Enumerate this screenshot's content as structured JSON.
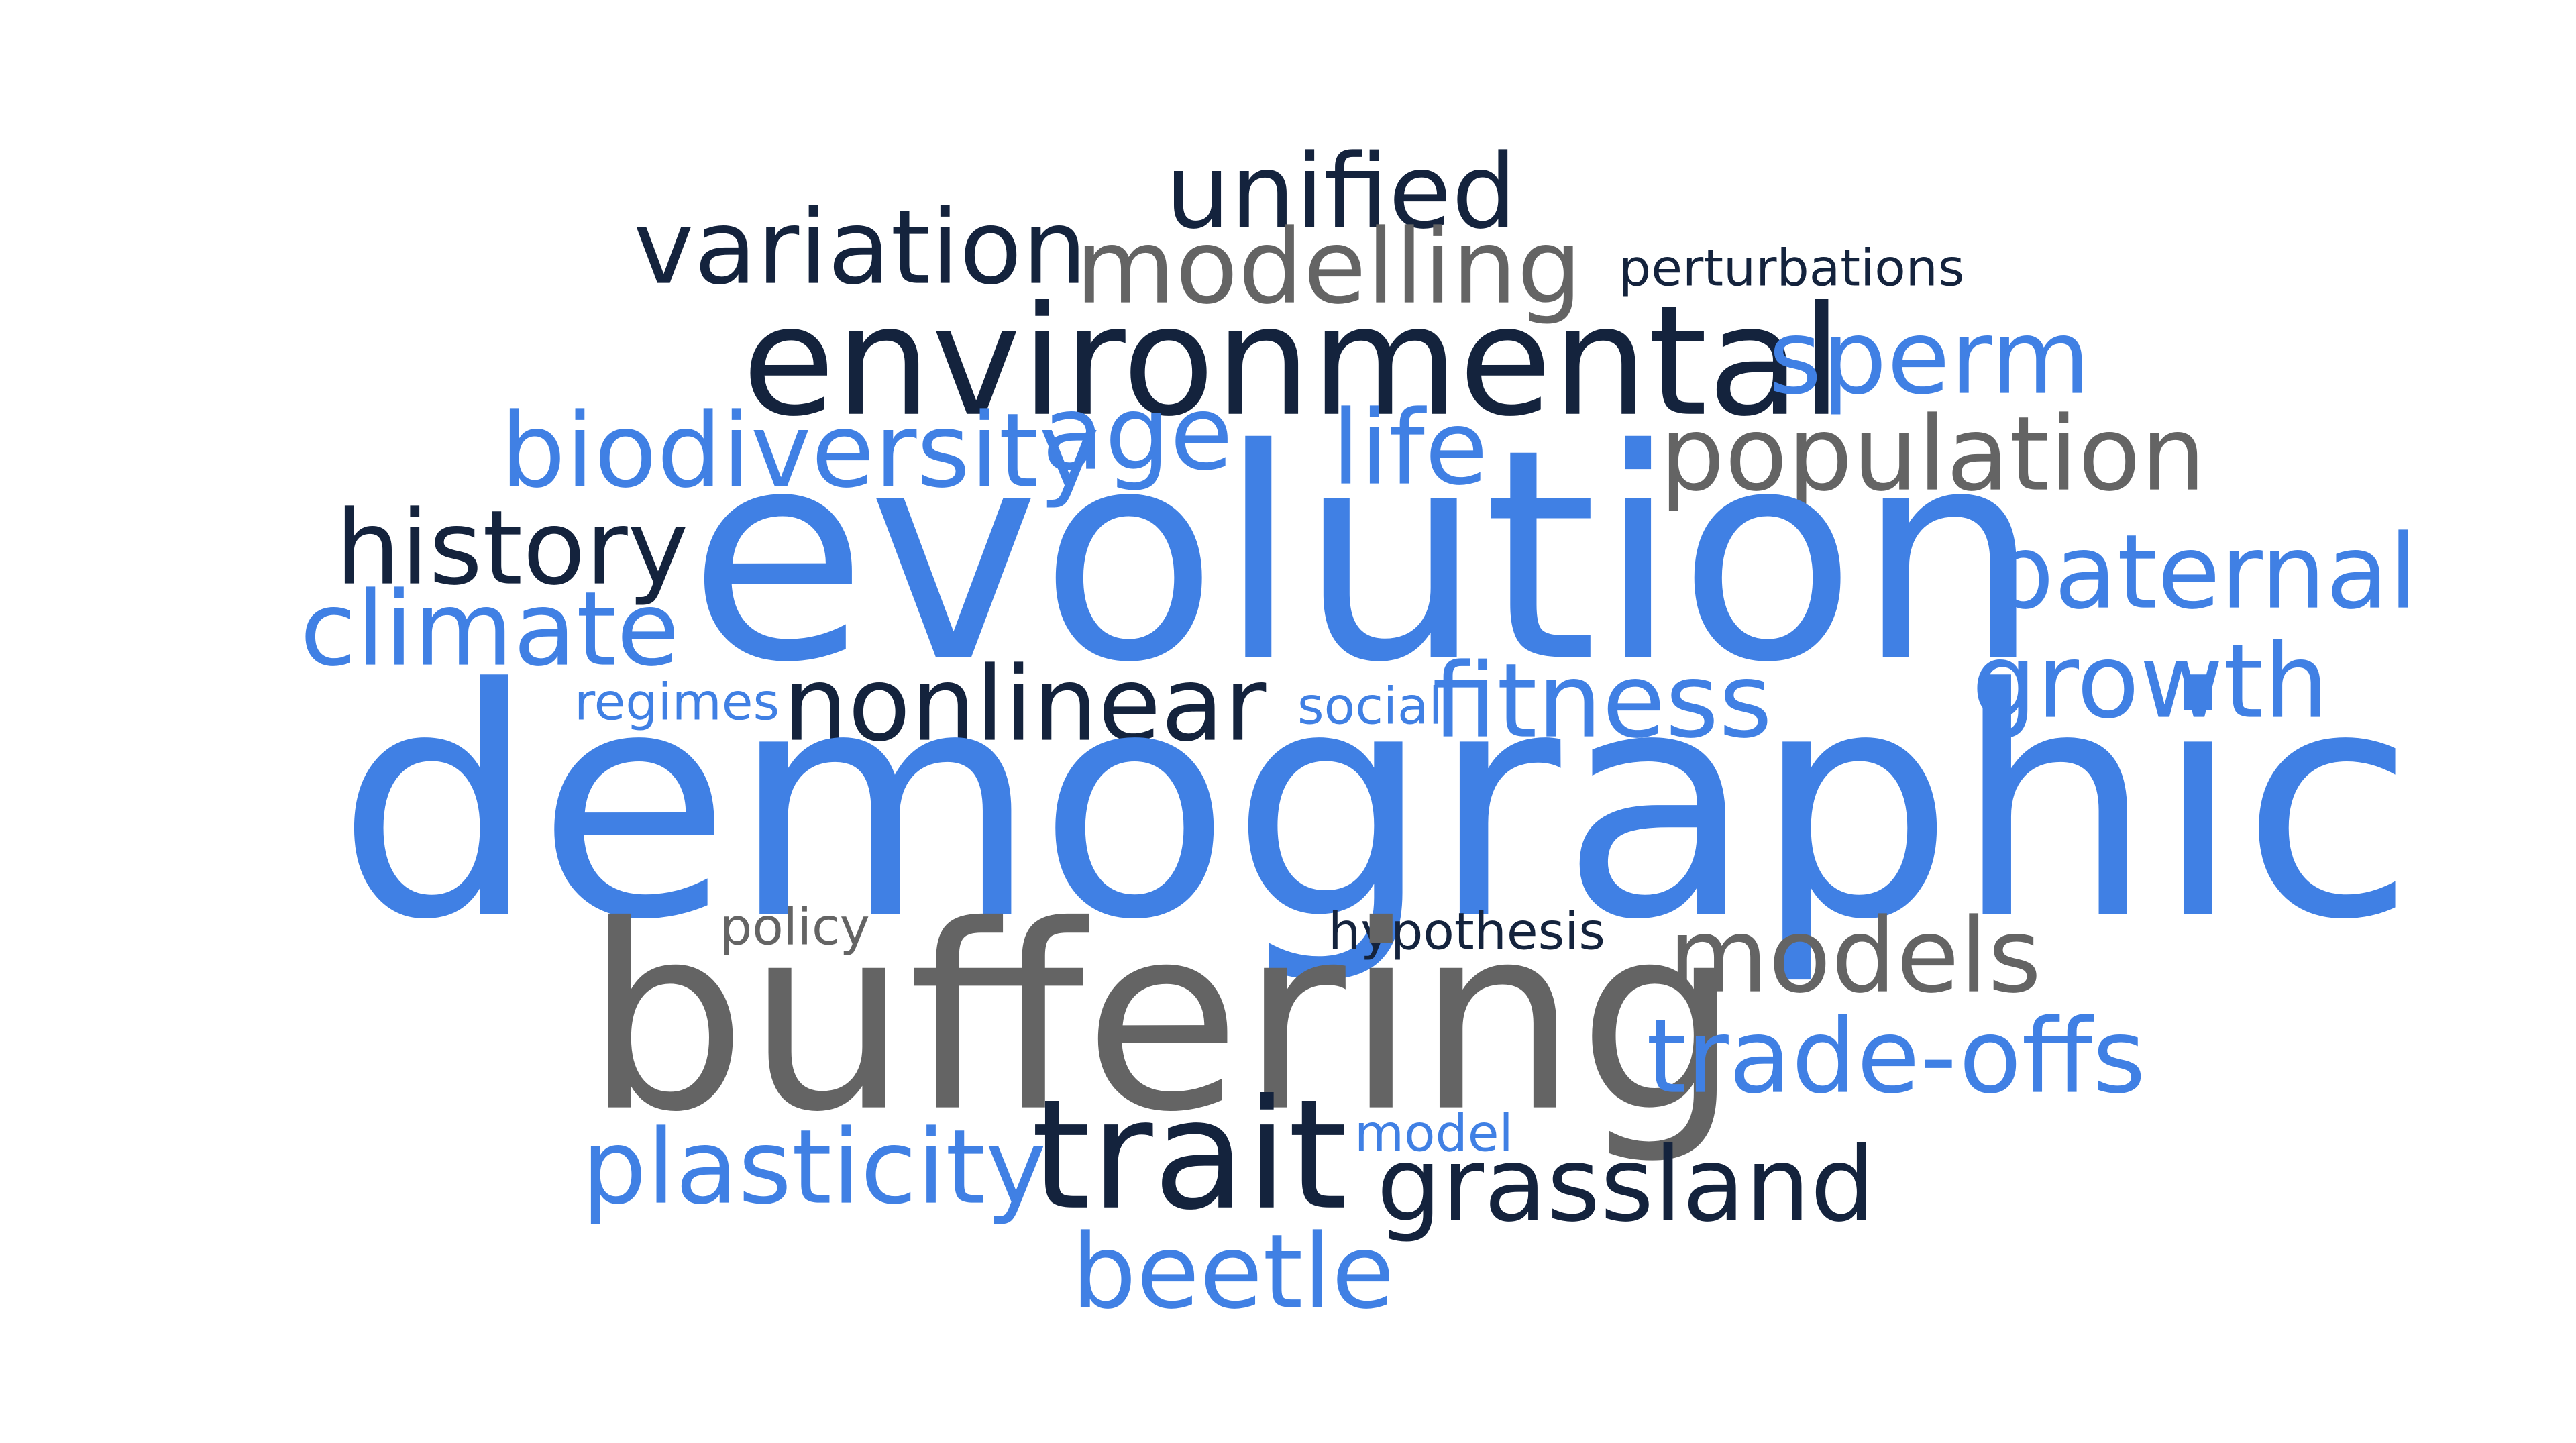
{
  "colors": {
    "blue": "#4080e4",
    "dark": "#14233d",
    "gray": "#646464",
    "background": "#ffffff"
  },
  "words": {
    "unified": "unified",
    "variation": "variation",
    "modelling": "modelling",
    "perturbations": "perturbations",
    "environmental": "environmental",
    "sperm": "sperm",
    "biodiversity": "biodiversity",
    "age": "age",
    "life": "life",
    "population": "population",
    "history": "history",
    "evolution": "evolution",
    "paternal": "paternal",
    "climate": "climate",
    "regimes": "regimes",
    "nonlinear": "nonlinear",
    "social": "social",
    "fitness": "fitness",
    "growth": "growth",
    "demographic": "demographic",
    "policy": "policy",
    "hypothesis": "hypothesis",
    "models": "models",
    "buffering": "buffering",
    "trade_offs": "trade-offs",
    "plasticity": "plasticity",
    "trait": "trait",
    "model": "model",
    "grassland": "grassland",
    "beetle": "beetle"
  }
}
